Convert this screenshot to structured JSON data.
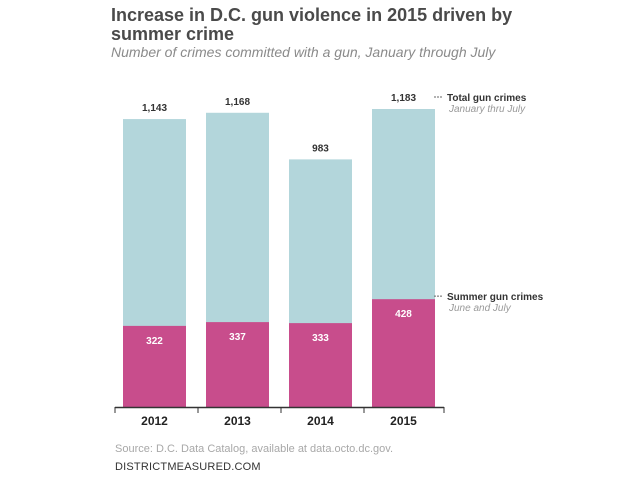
{
  "header": {
    "title": "Increase in D.C. gun violence in 2015 driven by summer crime",
    "subtitle": "Number of crimes committed with a gun, January through July"
  },
  "footer": {
    "source": "Source: D.C. Data Catalog, available at data.octo.dc.gov.",
    "brand": "DISTRICTMEASURED.COM"
  },
  "colors": {
    "total": "#b3d6db",
    "summer": "#c84d8c",
    "axis": "#333333"
  },
  "chart_data": {
    "type": "bar",
    "title": "Increase in D.C. gun violence in 2015 driven by summer crime",
    "subtitle": "Number of crimes committed with a gun, January through July",
    "categories": [
      "2012",
      "2013",
      "2014",
      "2015"
    ],
    "total_labels": [
      "1,143",
      "1,168",
      "983",
      "1,183"
    ],
    "summer_labels": [
      "322",
      "337",
      "333",
      "428"
    ],
    "series": [
      {
        "name": "Total gun crimes",
        "sublabel": "January thru July",
        "values": [
          1143,
          1168,
          983,
          1183
        ]
      },
      {
        "name": "Summer gun crimes",
        "sublabel": "June and July",
        "values": [
          322,
          337,
          333,
          428
        ]
      }
    ],
    "ylim": [
      0,
      1183
    ],
    "grid": false,
    "legend_position": "right"
  }
}
